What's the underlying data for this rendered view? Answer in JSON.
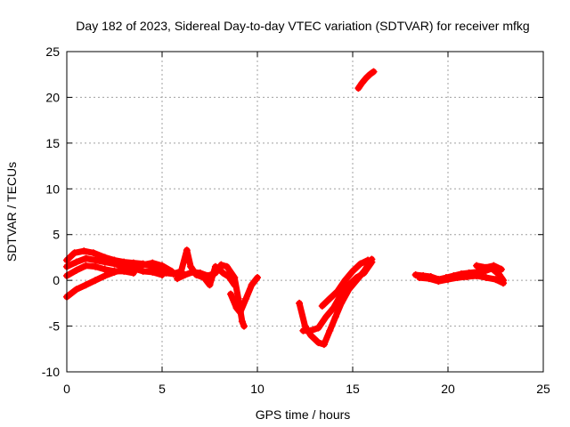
{
  "chart_data": {
    "type": "scatter",
    "title": "Day 182 of 2023, Sidereal Day-to-day VTEC variation (SDTVAR) for receiver mfkg",
    "xlabel": "GPS time / hours",
    "ylabel": "SDTVAR / TECUs",
    "xlim": [
      0,
      25
    ],
    "ylim": [
      -10,
      25
    ],
    "xticks": [
      0,
      5,
      10,
      15,
      20,
      25
    ],
    "xtick_labels": [
      "0",
      "5",
      "10",
      "15",
      "20",
      "25"
    ],
    "yticks": [
      -10,
      -5,
      0,
      5,
      10,
      15,
      20,
      25
    ],
    "ytick_labels": [
      "-10",
      "-5",
      "0",
      "5",
      "10",
      "15",
      "20",
      "25"
    ],
    "grid": true,
    "series": [
      {
        "name": "SDTVAR",
        "color": "#ff0000",
        "marker": "plus",
        "tracks": [
          [
            [
              0,
              2.2
            ],
            [
              0.4,
              3.0
            ],
            [
              0.9,
              3.2
            ],
            [
              1.4,
              3.0
            ],
            [
              2.0,
              2.5
            ],
            [
              2.5,
              2.2
            ],
            [
              3.0,
              2.0
            ],
            [
              3.5,
              1.9
            ],
            [
              4.0,
              1.8
            ],
            [
              4.5,
              1.5
            ],
            [
              5.0,
              1.0
            ],
            [
              5.5,
              0.8
            ],
            [
              6.0,
              0.8
            ]
          ],
          [
            [
              0,
              1.5
            ],
            [
              0.5,
              2.0
            ],
            [
              1.0,
              2.4
            ],
            [
              1.5,
              2.2
            ],
            [
              2.0,
              2.0
            ],
            [
              2.5,
              1.8
            ],
            [
              3.0,
              1.5
            ],
            [
              3.5,
              1.3
            ],
            [
              4.0,
              1.0
            ],
            [
              4.5,
              0.9
            ],
            [
              5.0,
              0.6
            ]
          ],
          [
            [
              0,
              0.5
            ],
            [
              0.5,
              1.1
            ],
            [
              1.0,
              1.6
            ],
            [
              1.5,
              1.5
            ],
            [
              2.0,
              1.2
            ],
            [
              2.5,
              1.0
            ],
            [
              3.0,
              1.0
            ],
            [
              3.5,
              0.8
            ]
          ],
          [
            [
              0,
              -1.8
            ],
            [
              0.5,
              -1.0
            ],
            [
              1.0,
              -0.5
            ],
            [
              1.5,
              0
            ],
            [
              2.0,
              0.5
            ],
            [
              2.5,
              0.9
            ],
            [
              3.0,
              1.2
            ],
            [
              3.5,
              1.4
            ],
            [
              4.0,
              1.7
            ],
            [
              4.5,
              1.9
            ],
            [
              5.0,
              1.6
            ],
            [
              5.5,
              1.0
            ]
          ],
          [
            [
              5.2,
              0.8
            ],
            [
              5.6,
              0.7
            ],
            [
              6.0,
              1.0
            ],
            [
              6.3,
              3.3
            ],
            [
              6.5,
              1.5
            ],
            [
              6.8,
              0.6
            ],
            [
              7.2,
              0.3
            ],
            [
              7.5,
              -0.5
            ],
            [
              7.8,
              1.5
            ],
            [
              8.0,
              1.2
            ],
            [
              8.2,
              0.8
            ],
            [
              8.5,
              0.4
            ],
            [
              8.8,
              -0.5
            ]
          ],
          [
            [
              5.8,
              0.2
            ],
            [
              6.2,
              0.6
            ],
            [
              6.6,
              0.9
            ],
            [
              7.0,
              0.8
            ],
            [
              7.4,
              0.5
            ],
            [
              7.8,
              0.8
            ],
            [
              8.1,
              1.7
            ],
            [
              8.4,
              1.5
            ],
            [
              8.8,
              0.3
            ],
            [
              9.0,
              -2.0
            ],
            [
              9.2,
              -4.5
            ],
            [
              9.3,
              -5.0
            ]
          ],
          [
            [
              8.6,
              -1.5
            ],
            [
              8.9,
              -3.0
            ],
            [
              9.1,
              -3.5
            ],
            [
              9.4,
              -2.0
            ],
            [
              9.7,
              -0.5
            ],
            [
              10.0,
              0.3
            ]
          ],
          [
            [
              12.2,
              -2.5
            ],
            [
              12.5,
              -5.0
            ],
            [
              12.8,
              -6.0
            ],
            [
              13.2,
              -6.8
            ],
            [
              13.5,
              -7.0
            ],
            [
              13.8,
              -5.5
            ],
            [
              14.1,
              -4.0
            ],
            [
              14.4,
              -2.5
            ],
            [
              14.8,
              -1.0
            ],
            [
              15.2,
              0
            ],
            [
              15.6,
              1.0
            ],
            [
              16.0,
              2.3
            ]
          ],
          [
            [
              12.4,
              -5.5
            ],
            [
              12.8,
              -5.5
            ],
            [
              13.2,
              -5.2
            ],
            [
              13.6,
              -4.0
            ],
            [
              14.0,
              -3.0
            ],
            [
              14.4,
              -1.5
            ],
            [
              14.8,
              -0.5
            ],
            [
              15.2,
              0.3
            ],
            [
              15.6,
              0.8
            ],
            [
              16.0,
              2.0
            ]
          ],
          [
            [
              13.4,
              -2.8
            ],
            [
              13.8,
              -2.0
            ],
            [
              14.2,
              -1.2
            ],
            [
              14.6,
              0
            ],
            [
              15.0,
              1.0
            ],
            [
              15.4,
              1.8
            ],
            [
              15.8,
              2.2
            ]
          ],
          [
            [
              15.3,
              21.0
            ],
            [
              15.5,
              21.6
            ],
            [
              15.7,
              22.1
            ],
            [
              15.9,
              22.5
            ],
            [
              16.1,
              22.8
            ]
          ],
          [
            [
              18.3,
              0.6
            ],
            [
              18.7,
              0.5
            ],
            [
              19.1,
              0.4
            ],
            [
              19.5,
              0.1
            ],
            [
              19.9,
              0.3
            ],
            [
              20.3,
              0.5
            ],
            [
              20.7,
              0.7
            ],
            [
              21.1,
              0.8
            ],
            [
              21.5,
              0.9
            ],
            [
              21.9,
              1.0
            ],
            [
              22.3,
              1.3
            ],
            [
              22.7,
              0.6
            ],
            [
              22.9,
              0
            ]
          ],
          [
            [
              18.5,
              0.3
            ],
            [
              19.0,
              0.2
            ],
            [
              19.5,
              -0.1
            ],
            [
              20.0,
              0.1
            ],
            [
              20.5,
              0.3
            ],
            [
              21.0,
              0.4
            ],
            [
              21.5,
              0.5
            ],
            [
              22.0,
              0.3
            ],
            [
              22.5,
              0.1
            ],
            [
              22.9,
              -0.3
            ]
          ],
          [
            [
              21.5,
              1.6
            ],
            [
              22.0,
              1.4
            ],
            [
              22.4,
              1.6
            ],
            [
              22.8,
              1.2
            ]
          ]
        ]
      }
    ]
  }
}
